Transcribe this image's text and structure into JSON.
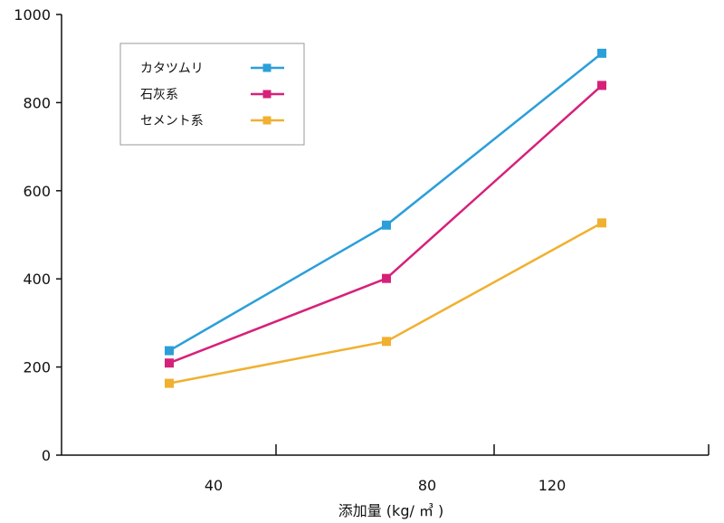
{
  "chart_data": {
    "type": "line",
    "categories": [
      "40",
      "80",
      "120"
    ],
    "x_ticks": [
      "40",
      "80",
      "120"
    ],
    "xlabel": "添加量 (kg/ ㎥ )",
    "ylabel": "",
    "ylim": [
      0,
      1000
    ],
    "y_ticks": [
      "0",
      "200",
      "400",
      "600",
      "800",
      "1000"
    ],
    "legend_position": "top-left",
    "grid": false,
    "series": [
      {
        "name": "カタツムリ",
        "color": "#2b9fd9",
        "values": [
          237,
          522,
          912
        ]
      },
      {
        "name": "石灰系",
        "color": "#d6217a",
        "values": [
          209,
          401,
          839
        ]
      },
      {
        "name": "セメント系",
        "color": "#f0b030",
        "values": [
          163,
          258,
          527
        ]
      }
    ]
  }
}
